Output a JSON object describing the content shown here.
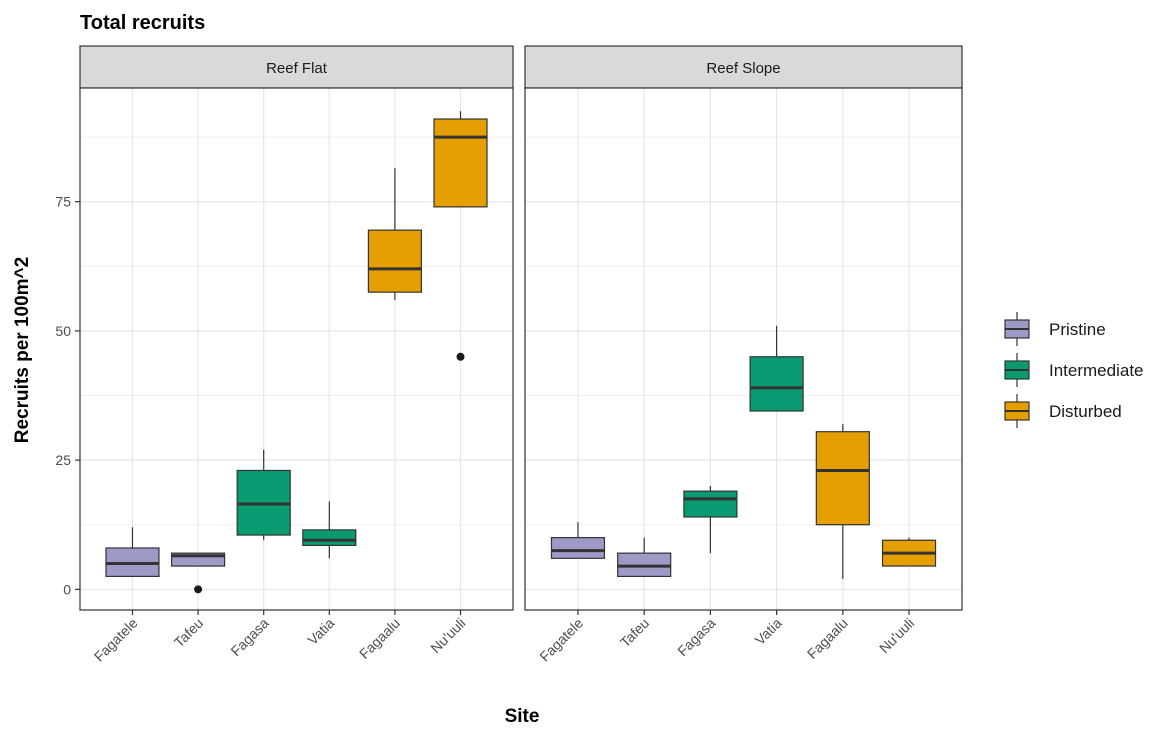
{
  "chart_data": {
    "type": "boxplot",
    "title": "Total recruits",
    "xlabel": "Site",
    "ylabel": "Recruits per 100m^2",
    "ylim": [
      -4,
      97
    ],
    "yticks": [
      0,
      25,
      50,
      75
    ],
    "grid": true,
    "legend_position": "right",
    "categories": [
      "Fagatele",
      "Tafeu",
      "Fagasa",
      "Vatia",
      "Fagaalu",
      "Nu'uuli"
    ],
    "legend": [
      {
        "name": "Pristine",
        "color": "#9e9ac8"
      },
      {
        "name": "Intermediate",
        "color": "#0a9a72"
      },
      {
        "name": "Disturbed",
        "color": "#e69f00"
      }
    ],
    "panels": [
      {
        "name": "Reef Flat",
        "boxes": [
          {
            "site": "Fagatele",
            "group": "Pristine",
            "min": 2.5,
            "q1": 2.5,
            "median": 5,
            "q3": 8,
            "max": 12,
            "outliers": []
          },
          {
            "site": "Tafeu",
            "group": "Pristine",
            "min": 4.5,
            "q1": 4.5,
            "median": 6.5,
            "q3": 7,
            "max": 7,
            "outliers": [
              0
            ]
          },
          {
            "site": "Fagasa",
            "group": "Intermediate",
            "min": 9.5,
            "q1": 10.5,
            "median": 16.5,
            "q3": 23,
            "max": 27,
            "outliers": []
          },
          {
            "site": "Vatia",
            "group": "Intermediate",
            "min": 6,
            "q1": 8.5,
            "median": 9.5,
            "q3": 11.5,
            "max": 17,
            "outliers": []
          },
          {
            "site": "Fagaalu",
            "group": "Disturbed",
            "min": 56,
            "q1": 57.5,
            "median": 62,
            "q3": 69.5,
            "max": 81.5,
            "outliers": []
          },
          {
            "site": "Nu'uuli",
            "group": "Disturbed",
            "min": 74,
            "q1": 74,
            "median": 87.5,
            "q3": 91,
            "max": 92.5,
            "outliers": [
              45
            ]
          }
        ]
      },
      {
        "name": "Reef Slope",
        "boxes": [
          {
            "site": "Fagatele",
            "group": "Pristine",
            "min": 6,
            "q1": 6,
            "median": 7.5,
            "q3": 10,
            "max": 13,
            "outliers": []
          },
          {
            "site": "Tafeu",
            "group": "Pristine",
            "min": 2.5,
            "q1": 2.5,
            "median": 4.5,
            "q3": 7,
            "max": 10,
            "outliers": []
          },
          {
            "site": "Fagasa",
            "group": "Intermediate",
            "min": 7,
            "q1": 14,
            "median": 17.5,
            "q3": 19,
            "max": 20,
            "outliers": []
          },
          {
            "site": "Vatia",
            "group": "Intermediate",
            "min": 34.5,
            "q1": 34.5,
            "median": 39,
            "q3": 45,
            "max": 51,
            "outliers": []
          },
          {
            "site": "Fagaalu",
            "group": "Disturbed",
            "min": 2,
            "q1": 12.5,
            "median": 23,
            "q3": 30.5,
            "max": 32,
            "outliers": []
          },
          {
            "site": "Nu'uuli",
            "group": "Disturbed",
            "min": 4.5,
            "q1": 4.5,
            "median": 7,
            "q3": 9.5,
            "max": 10,
            "outliers": []
          }
        ]
      }
    ]
  }
}
